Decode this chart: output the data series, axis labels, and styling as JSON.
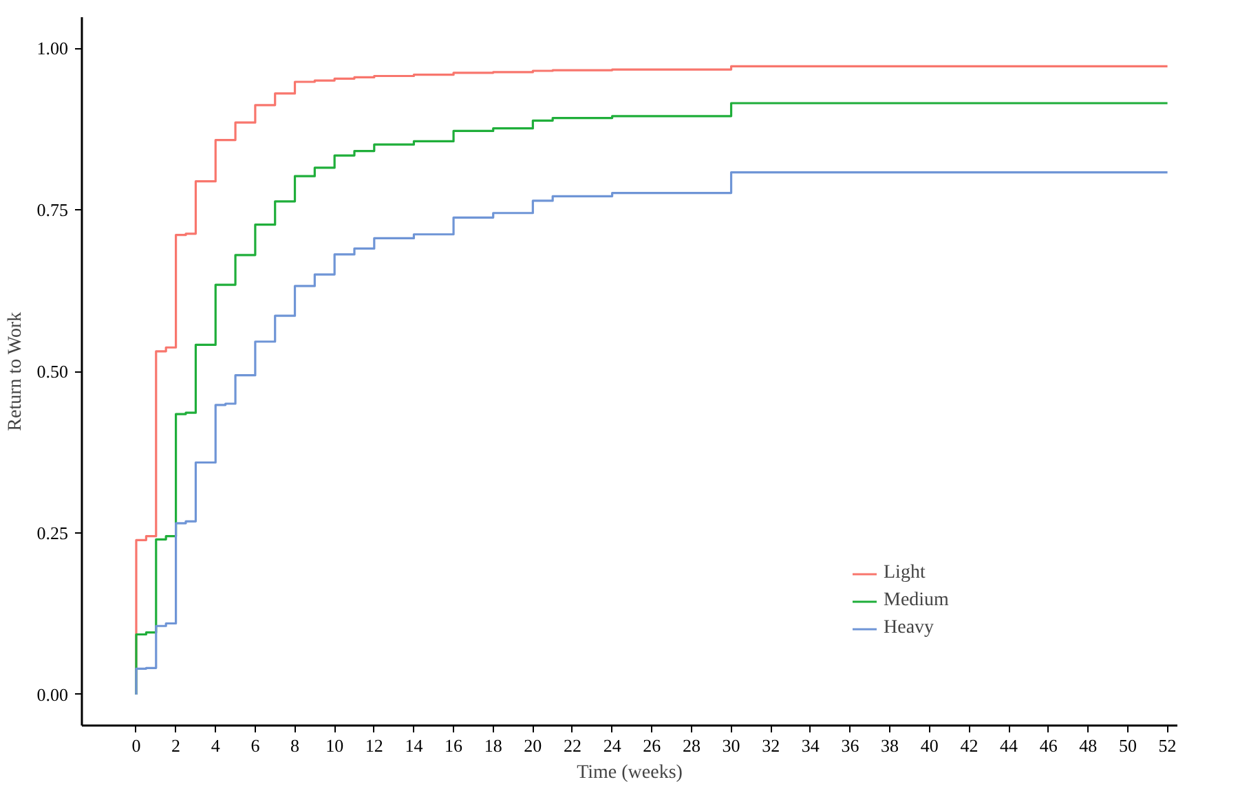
{
  "chart_data": {
    "type": "step",
    "xlabel": "Time (weeks)",
    "ylabel": "Return to Work",
    "xlim": [
      -2.74,
      52.5
    ],
    "ylim": [
      -0.048,
      1.048
    ],
    "xticks": [
      0,
      2,
      4,
      6,
      8,
      10,
      12,
      14,
      16,
      18,
      20,
      22,
      24,
      26,
      28,
      30,
      32,
      34,
      36,
      38,
      40,
      42,
      44,
      46,
      48,
      50,
      52
    ],
    "yticks": [
      {
        "value": 0,
        "label": "0.00"
      },
      {
        "value": 0.25,
        "label": "0.25"
      },
      {
        "value": 0.5,
        "label": "0.50"
      },
      {
        "value": 0.75,
        "label": "0.75"
      },
      {
        "value": 1,
        "label": "1.00"
      }
    ],
    "grid": false,
    "legend": "bottom right",
    "line_style": "solid",
    "series": [
      {
        "name": "Light",
        "color": "#f8766d",
        "x": [
          0,
          0,
          0.5,
          1,
          1.5,
          2,
          2.5,
          3,
          4,
          5,
          6,
          7,
          8,
          9,
          10,
          11,
          12,
          14,
          16,
          18,
          20,
          21,
          24,
          30,
          52
        ],
        "values": [
          0,
          0.239,
          0.245,
          0.531,
          0.537,
          0.711,
          0.713,
          0.794,
          0.858,
          0.885,
          0.912,
          0.93,
          0.948,
          0.95,
          0.953,
          0.955,
          0.957,
          0.959,
          0.962,
          0.963,
          0.965,
          0.966,
          0.967,
          0.972,
          0.972
        ]
      },
      {
        "name": "Medium",
        "color": "#1fae3a",
        "x": [
          0,
          0,
          0.5,
          1,
          1.5,
          2,
          2.5,
          3,
          4,
          5,
          6,
          7,
          8,
          9,
          10,
          11,
          12,
          14,
          16,
          18,
          20,
          21,
          24,
          30,
          52
        ],
        "values": [
          0,
          0.093,
          0.096,
          0.24,
          0.245,
          0.434,
          0.436,
          0.541,
          0.634,
          0.68,
          0.727,
          0.763,
          0.802,
          0.815,
          0.834,
          0.841,
          0.851,
          0.856,
          0.872,
          0.876,
          0.888,
          0.892,
          0.895,
          0.915,
          0.915
        ]
      },
      {
        "name": "Heavy",
        "color": "#6f95d6",
        "x": [
          0,
          0,
          0.5,
          1,
          1.5,
          2,
          2.5,
          3,
          4,
          4.5,
          5,
          6,
          7,
          8,
          9,
          10,
          11,
          12,
          14,
          16,
          18,
          20,
          21,
          24,
          30,
          52
        ],
        "values": [
          0,
          0.04,
          0.041,
          0.106,
          0.11,
          0.265,
          0.268,
          0.359,
          0.448,
          0.45,
          0.494,
          0.546,
          0.586,
          0.632,
          0.65,
          0.681,
          0.69,
          0.706,
          0.712,
          0.738,
          0.745,
          0.764,
          0.771,
          0.776,
          0.808,
          0.808
        ]
      }
    ]
  }
}
